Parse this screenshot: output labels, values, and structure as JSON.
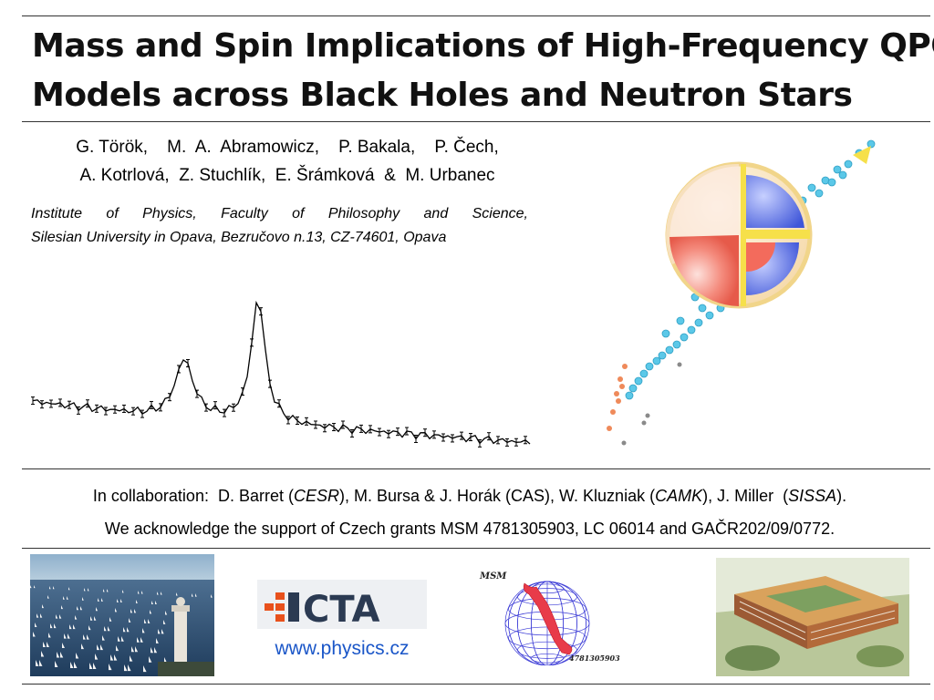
{
  "title": {
    "line1": "Mass and Spin Implications of High-Frequency QPO",
    "line2": "Models across Black Holes and Neutron Stars"
  },
  "authors": {
    "line1": "G. Török,    M.  A.  Abramowicz,    P. Bakala,    P. Čech,",
    "line2": "A. Kotrlová,  Z. Stuchlík,  E. Šrámková  &  M. Urbanec"
  },
  "affiliation": {
    "line1": "Institute  of  Physics,      Faculty  of  Philosophy   and  Science,",
    "line2": "Silesian University in Opava, Bezručovo n.13, CZ-74601, Opava"
  },
  "collaboration": {
    "prefix": "In collaboration:  D. Barret (",
    "cesr": "CESR",
    "part2": "), M. Bursa & J. Horák (CAS), W. Kluzniak (",
    "camk": "CAMK",
    "part3": "), J. Miller  (",
    "sissa": "SISSA",
    "suffix": ")."
  },
  "acknowledgement": "We acknowledge the support of Czech grants MSM 4781305903, LC 06014 and GAČR202/09/0772.",
  "website": "www.physics.cz",
  "msm_logo": {
    "label": "MSM",
    "number": "4781305903"
  },
  "cta_logo": {
    "text": "CTA"
  },
  "colors": {
    "link": "#1a56c8",
    "cta_orange": "#e8511c",
    "cta_navy": "#2b3a52",
    "star_red": "#f26b5b",
    "star_blue": "#5a6fe0",
    "star_yellow": "#f6e04a",
    "points_cyan": "#5bc8e8",
    "points_orange": "#ef8a5a",
    "points_gray": "#8a8a8a"
  },
  "icons": [
    "lighthouse-photo",
    "cta-logo",
    "msm-wireframe-logo",
    "university-building-photo"
  ]
}
